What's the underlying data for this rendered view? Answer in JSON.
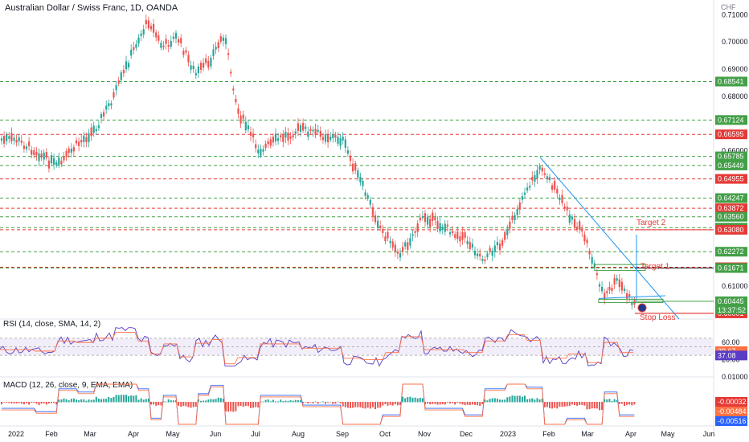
{
  "chart_data": {
    "type": "candlestick",
    "title": "Australian Dollar / Swiss Franc, 1D, OANDA",
    "currency": "CHF",
    "price_ylim": [
      0.5985,
      0.7125
    ],
    "x_axis_labels": [
      "2022",
      "Feb",
      "Mar",
      "Apr",
      "May",
      "Jun",
      "Jul",
      "Aug",
      "Sep",
      "Oct",
      "Nov",
      "Dec",
      "2023",
      "Feb",
      "Mar",
      "Apr",
      "May",
      "Jun"
    ],
    "price_tick_labels": [
      "0.71000",
      "0.70000",
      "0.69000",
      "0.68000",
      "0.66000",
      "0.61000"
    ],
    "horizontal_levels": [
      {
        "value": 0.68541,
        "label": "0.68541",
        "color": "#43a047",
        "style": "dashed"
      },
      {
        "value": 0.67124,
        "label": "0.67124",
        "color": "#43a047",
        "style": "dashed"
      },
      {
        "value": 0.66595,
        "label": "0.66595",
        "color": "#e53935",
        "style": "dashed"
      },
      {
        "value": 0.65785,
        "label": "0.65785",
        "color": "#43a047",
        "style": "dashed"
      },
      {
        "value": 0.65449,
        "label": "0.65449",
        "color": "#43a047",
        "style": "dashed"
      },
      {
        "value": 0.64955,
        "label": "0.64955",
        "color": "#e53935",
        "style": "dashed"
      },
      {
        "value": 0.64247,
        "label": "0.64247",
        "color": "#43a047",
        "style": "dashed"
      },
      {
        "value": 0.63872,
        "label": "0.63872",
        "color": "#e53935",
        "style": "dashed"
      },
      {
        "value": 0.6356,
        "label": "0.63560",
        "color": "#43a047",
        "style": "dashed"
      },
      {
        "value": 0.63158,
        "label": "0.63158",
        "color": "#43a047",
        "style": "dashed"
      },
      {
        "value": 0.6308,
        "label": "0.63080",
        "color": "#e53935",
        "style": "dashed"
      },
      {
        "value": 0.62272,
        "label": "0.62272",
        "color": "#43a047",
        "style": "dashed"
      },
      {
        "value": 0.61699,
        "label": "0.61699",
        "color": "#e53935",
        "style": "dashed"
      },
      {
        "value": 0.61671,
        "label": "0.61671",
        "color": "#43a047",
        "style": "dashed"
      },
      {
        "value": 0.60445,
        "label": "0.60445",
        "color": "#43a047",
        "style": "solid"
      },
      {
        "value": 0.60001,
        "label": "0.60001",
        "color": "#e53935",
        "style": "solid"
      }
    ],
    "countdown": "13:37:52",
    "annotations": [
      {
        "text": "Target 2",
        "price": 0.6308,
        "color": "#e53935"
      },
      {
        "text": "Target 1",
        "price": 0.6167,
        "color": "#e53935"
      },
      {
        "text": "Stop Loss",
        "price": 0.6,
        "color": "#e53935"
      }
    ],
    "price_series": [
      {
        "date": "2022-01",
        "close": 0.664
      },
      {
        "date": "2022-01-15",
        "close": 0.66
      },
      {
        "date": "2022-02-01",
        "close": 0.654
      },
      {
        "date": "2022-02-15",
        "close": 0.662
      },
      {
        "date": "2022-03-01",
        "close": 0.668
      },
      {
        "date": "2022-03-15",
        "close": 0.68
      },
      {
        "date": "2022-04-01",
        "close": 0.7
      },
      {
        "date": "2022-04-10",
        "close": 0.708
      },
      {
        "date": "2022-04-20",
        "close": 0.698
      },
      {
        "date": "2022-05-01",
        "close": 0.702
      },
      {
        "date": "2022-05-15",
        "close": 0.688
      },
      {
        "date": "2022-05-25",
        "close": 0.693
      },
      {
        "date": "2022-06-05",
        "close": 0.703
      },
      {
        "date": "2022-06-15",
        "close": 0.675
      },
      {
        "date": "2022-07-01",
        "close": 0.66
      },
      {
        "date": "2022-07-15",
        "close": 0.664
      },
      {
        "date": "2022-08-01",
        "close": 0.668
      },
      {
        "date": "2022-08-15",
        "close": 0.666
      },
      {
        "date": "2022-09-01",
        "close": 0.664
      },
      {
        "date": "2022-09-15",
        "close": 0.648
      },
      {
        "date": "2022-10-01",
        "close": 0.63
      },
      {
        "date": "2022-10-15",
        "close": 0.622
      },
      {
        "date": "2022-11-01",
        "close": 0.636
      },
      {
        "date": "2022-11-15",
        "close": 0.632
      },
      {
        "date": "2022-12-01",
        "close": 0.628
      },
      {
        "date": "2022-12-15",
        "close": 0.62
      },
      {
        "date": "2023-01-01",
        "close": 0.628
      },
      {
        "date": "2023-01-15",
        "close": 0.645
      },
      {
        "date": "2023-01-28",
        "close": 0.654
      },
      {
        "date": "2023-02-15",
        "close": 0.638
      },
      {
        "date": "2023-03-01",
        "close": 0.628
      },
      {
        "date": "2023-03-15",
        "close": 0.606
      },
      {
        "date": "2023-03-25",
        "close": 0.612
      },
      {
        "date": "2023-04-05",
        "close": 0.604
      }
    ],
    "rsi": {
      "label": "RSI (14, close, SMA, 14, 2)",
      "ylim": [
        0,
        100
      ],
      "tick_labels": [
        "60.00",
        "20.00"
      ],
      "values": [
        {
          "label": "39.67",
          "value": 39.67,
          "color": "#ff7043"
        },
        {
          "label": "37.08",
          "value": 37.08,
          "color": "#5b3cc4"
        }
      ]
    },
    "macd": {
      "label": "MACD (12, 26, close, 9, EMA, EMA)",
      "tick_labels": [
        "0.01000"
      ],
      "values": [
        {
          "label": "-0.00032",
          "value": -0.00032,
          "color": "#e53935"
        },
        {
          "label": "-0.00484",
          "value": -0.00484,
          "color": "#ff7043"
        },
        {
          "label": "-0.00516",
          "value": -0.00516,
          "color": "#2962ff"
        }
      ]
    }
  }
}
